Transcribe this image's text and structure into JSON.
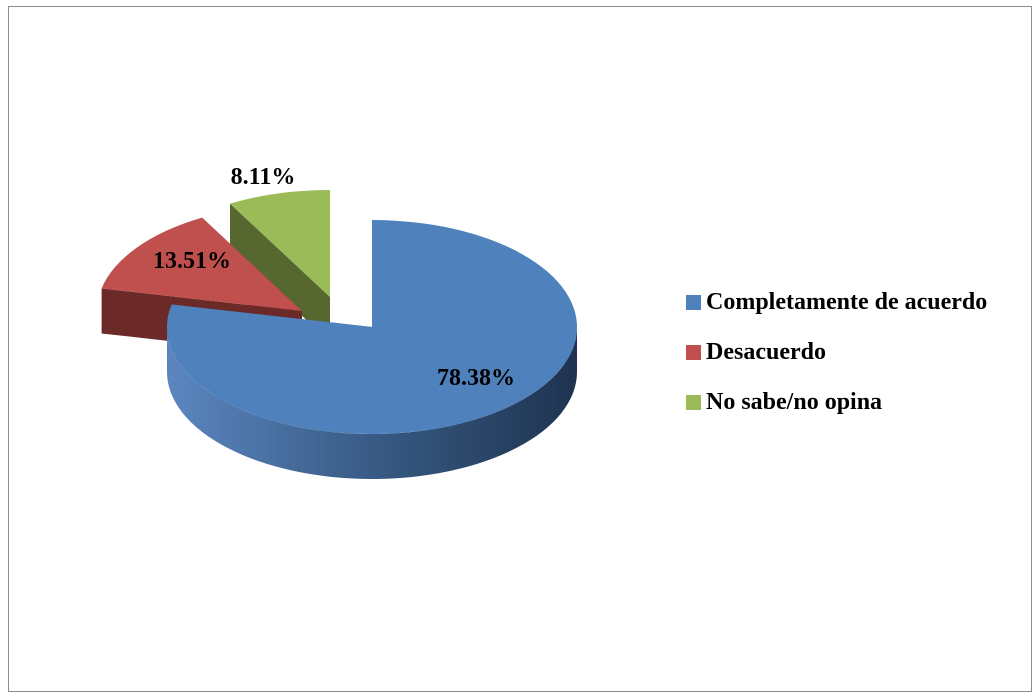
{
  "chart_data": {
    "type": "pie",
    "style": "3d-exploded",
    "categories": [
      "Completamente de acuerdo",
      "Desacuerdo",
      "No sabe/no opina"
    ],
    "values": [
      78.38,
      13.51,
      8.11
    ],
    "value_labels": [
      "78.38%",
      "13.51%",
      "8.11%"
    ],
    "colors": [
      "#4f81bd",
      "#c0504d",
      "#9bbb59"
    ],
    "side_colors": [
      "#3a5f8c",
      "#6b2a28",
      "#56682f"
    ],
    "legend_position": "right",
    "title": ""
  }
}
